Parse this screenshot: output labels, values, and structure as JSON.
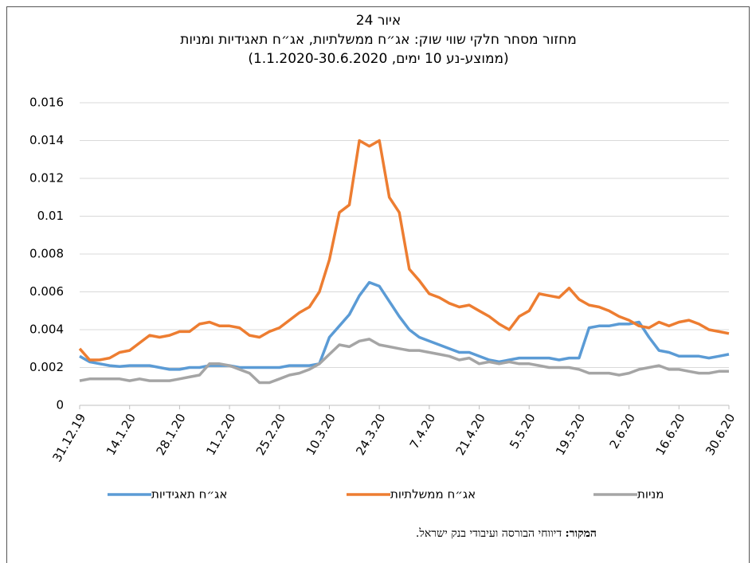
{
  "chart_data": {
    "type": "line",
    "title": "איור 24",
    "subtitle": "מחזור מסחר חלקי שווי שוק: אג״ח ממשלתיות, אג״ח תאגידיות ומניות",
    "subtitle2": "(ממוצע-נע 10 ימים, 1.1.2020-30.6.2020)",
    "categories": [
      "31.12.19",
      null,
      null,
      null,
      null,
      "14.1.20",
      null,
      null,
      null,
      null,
      "28.1.20",
      null,
      null,
      null,
      null,
      "11.2.20",
      null,
      null,
      null,
      null,
      "25.2.20",
      null,
      null,
      null,
      null,
      "10.3.20",
      null,
      null,
      null,
      null,
      "24.3.20",
      null,
      null,
      null,
      null,
      "7.4.20",
      null,
      null,
      null,
      null,
      "21.4.20",
      null,
      null,
      null,
      null,
      "5.5.20",
      null,
      null,
      null,
      null,
      "19.5.20",
      null,
      null,
      null,
      null,
      "2.6.20",
      null,
      null,
      null,
      null,
      "16.6.20",
      null,
      null,
      null,
      null,
      "30.6.20"
    ],
    "series": [
      {
        "name": "אג״ח תאגידיות",
        "color": "#5b9bd5",
        "values": [
          0.0026,
          0.0023,
          0.0022,
          0.0021,
          0.00205,
          0.0021,
          0.0021,
          0.0021,
          0.002,
          0.0019,
          0.0019,
          0.002,
          0.002,
          0.0021,
          0.0021,
          0.0021,
          0.002,
          0.002,
          0.002,
          0.002,
          0.002,
          0.0021,
          0.0021,
          0.0021,
          0.0022,
          0.0036,
          0.0042,
          0.0048,
          0.0058,
          0.0065,
          0.0063,
          0.0055,
          0.0047,
          0.004,
          0.0036,
          0.0034,
          0.0032,
          0.003,
          0.0028,
          0.0028,
          0.0026,
          0.0024,
          0.0023,
          0.0024,
          0.0025,
          0.0025,
          0.0025,
          0.0025,
          0.0024,
          0.0025,
          0.0025,
          0.0041,
          0.0042,
          0.0042,
          0.0043,
          0.0043,
          0.0044,
          0.0036,
          0.0029,
          0.0028,
          0.0026,
          0.0026,
          0.0026,
          0.0025,
          0.0026,
          0.0027
        ]
      },
      {
        "name": "אג״ח ממשלתיות",
        "color": "#ed7d31",
        "values": [
          0.003,
          0.0024,
          0.0024,
          0.0025,
          0.0028,
          0.0029,
          0.0033,
          0.0037,
          0.0036,
          0.0037,
          0.0039,
          0.0039,
          0.0043,
          0.0044,
          0.0042,
          0.0042,
          0.0041,
          0.0037,
          0.0036,
          0.0039,
          0.0041,
          0.0045,
          0.0049,
          0.0052,
          0.006,
          0.0077,
          0.0102,
          0.0106,
          0.014,
          0.0137,
          0.014,
          0.011,
          0.0102,
          0.0072,
          0.0066,
          0.0059,
          0.0057,
          0.0054,
          0.0052,
          0.0053,
          0.005,
          0.0047,
          0.0043,
          0.004,
          0.0047,
          0.005,
          0.0059,
          0.0058,
          0.0057,
          0.0062,
          0.0056,
          0.0053,
          0.0052,
          0.005,
          0.0047,
          0.0045,
          0.0042,
          0.0041,
          0.0044,
          0.0042,
          0.0044,
          0.0045,
          0.0043,
          0.004,
          0.0039,
          0.0038
        ]
      },
      {
        "name": "מניות",
        "color": "#a5a5a5",
        "values": [
          0.0013,
          0.0014,
          0.0014,
          0.0014,
          0.0014,
          0.0013,
          0.0014,
          0.0013,
          0.0013,
          0.0013,
          0.0014,
          0.0015,
          0.0016,
          0.0022,
          0.0022,
          0.0021,
          0.0019,
          0.0017,
          0.0012,
          0.0012,
          0.0014,
          0.0016,
          0.0017,
          0.0019,
          0.0022,
          0.0027,
          0.0032,
          0.0031,
          0.0034,
          0.0035,
          0.0032,
          0.0031,
          0.003,
          0.0029,
          0.0029,
          0.0028,
          0.0027,
          0.0026,
          0.0024,
          0.0025,
          0.0022,
          0.0023,
          0.0022,
          0.0023,
          0.0022,
          0.0022,
          0.0021,
          0.002,
          0.002,
          0.002,
          0.0019,
          0.0017,
          0.0017,
          0.0017,
          0.0016,
          0.0017,
          0.0019,
          0.002,
          0.0021,
          0.0019,
          0.0019,
          0.0018,
          0.0017,
          0.0017,
          0.0018,
          0.0018
        ]
      }
    ],
    "ylim": [
      0,
      0.016
    ],
    "yticks": [
      0,
      0.002,
      0.004,
      0.006,
      0.008,
      0.01,
      0.012,
      0.014,
      0.016
    ],
    "grid": true,
    "legend": "bottom",
    "source": {
      "label": "המקור:",
      "text": "דיווחי הבורסה ועיבודי בנק ישראל."
    }
  }
}
